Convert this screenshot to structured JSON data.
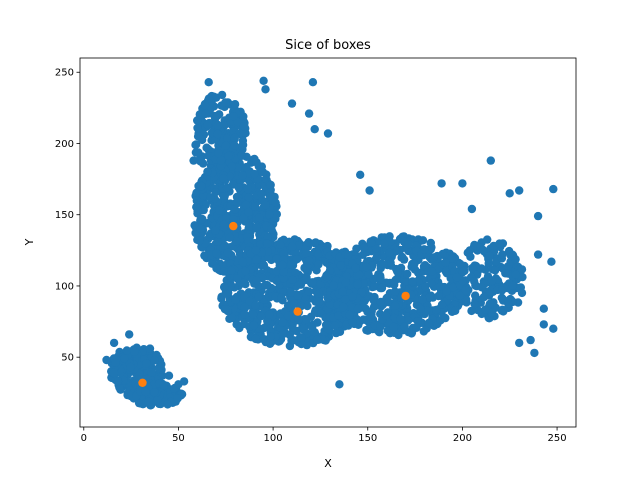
{
  "chart_data": {
    "type": "scatter",
    "title": "Sice of boxes",
    "xlabel": "X",
    "ylabel": "Y",
    "xlim": [
      -2,
      260
    ],
    "ylim": [
      1,
      260
    ],
    "xticks": [
      0,
      50,
      100,
      150,
      200,
      250
    ],
    "yticks": [
      50,
      100,
      150,
      200,
      250
    ],
    "grid": false,
    "series": [
      {
        "color": "#1f77b4",
        "clusters": [
          {
            "cx": 28,
            "cy": 40,
            "rx": 14,
            "ry": 18,
            "n": 220
          },
          {
            "cx": 38,
            "cy": 24,
            "rx": 14,
            "ry": 8,
            "n": 150
          },
          {
            "cx": 80,
            "cy": 150,
            "rx": 22,
            "ry": 45,
            "n": 500
          },
          {
            "cx": 72,
            "cy": 205,
            "rx": 14,
            "ry": 30,
            "n": 180
          },
          {
            "cx": 110,
            "cy": 95,
            "rx": 38,
            "ry": 38,
            "n": 650
          },
          {
            "cx": 165,
            "cy": 100,
            "rx": 38,
            "ry": 35,
            "n": 600
          },
          {
            "cx": 215,
            "cy": 105,
            "rx": 18,
            "ry": 28,
            "n": 160
          }
        ],
        "points": [
          [
            121,
            243
          ],
          [
            110,
            228
          ],
          [
            119,
            221
          ],
          [
            122,
            210
          ],
          [
            129,
            207
          ],
          [
            95,
            244
          ],
          [
            96,
            238
          ],
          [
            146,
            178
          ],
          [
            215,
            188
          ],
          [
            225,
            165
          ],
          [
            230,
            167
          ],
          [
            248,
            168
          ],
          [
            240,
            149
          ],
          [
            189,
            172
          ],
          [
            200,
            172
          ],
          [
            151,
            167
          ],
          [
            135,
            31
          ],
          [
            205,
            154
          ],
          [
            240,
            122
          ],
          [
            247,
            117
          ],
          [
            243,
            84
          ],
          [
            243,
            73
          ],
          [
            248,
            70
          ],
          [
            238,
            53
          ],
          [
            236,
            62
          ],
          [
            230,
            60
          ],
          [
            45,
            37
          ],
          [
            50,
            31
          ],
          [
            53,
            33
          ],
          [
            12,
            48
          ],
          [
            16,
            60
          ],
          [
            18,
            33
          ],
          [
            24,
            66
          ],
          [
            35,
            56
          ],
          [
            62,
            170
          ],
          [
            58,
            188
          ],
          [
            64,
            227
          ],
          [
            66,
            243
          ]
        ]
      },
      {
        "color": "#ff7f0e",
        "x": [
          31,
          79,
          113,
          170
        ],
        "y": [
          32,
          142,
          82,
          93
        ]
      }
    ]
  }
}
